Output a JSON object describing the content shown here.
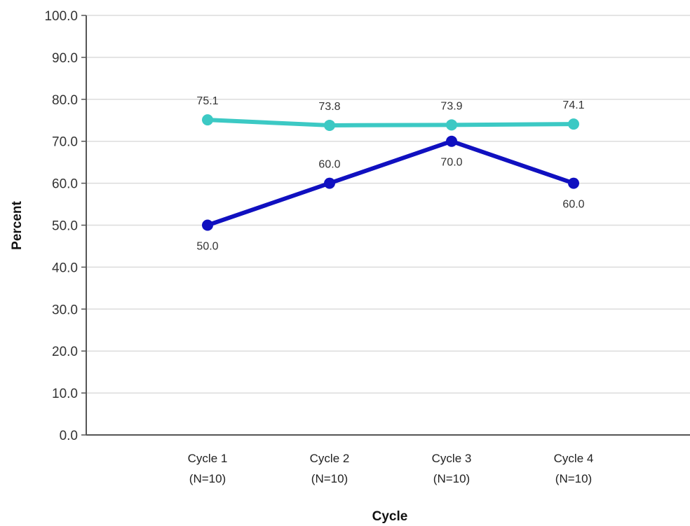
{
  "chart_data": {
    "type": "line",
    "title": "",
    "xlabel": "Cycle",
    "ylabel": "Percent",
    "ylim": [
      0,
      100
    ],
    "y_ticks": [
      "0.0",
      "10.0",
      "20.0",
      "30.0",
      "40.0",
      "50.0",
      "60.0",
      "70.0",
      "80.0",
      "90.0",
      "100.0"
    ],
    "categories": [
      [
        "Cycle 1",
        "(N=10)"
      ],
      [
        "Cycle 2",
        "(N=10)"
      ],
      [
        "Cycle 3",
        "(N=10)"
      ],
      [
        "Cycle 4",
        "(N=10)"
      ]
    ],
    "grid": true,
    "legend": "none",
    "series": [
      {
        "color": "#3cc9c4",
        "values": [
          75.1,
          73.8,
          73.9,
          74.1
        ],
        "labels": [
          "75.1",
          "73.8",
          "73.9",
          "74.1"
        ],
        "label_position": [
          "above",
          "above",
          "above",
          "above"
        ]
      },
      {
        "color": "#1010c0",
        "values": [
          50.0,
          60.0,
          70.0,
          60.0
        ],
        "labels": [
          "50.0",
          "60.0",
          "70.0",
          "60.0"
        ],
        "label_position": [
          "below",
          "above",
          "below",
          "below"
        ]
      }
    ]
  }
}
